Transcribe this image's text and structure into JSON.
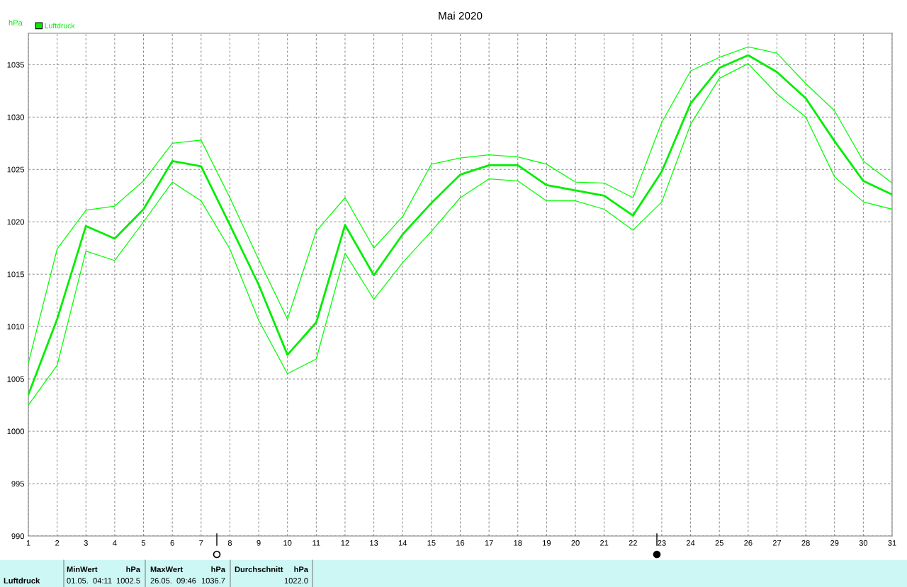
{
  "chart_data": {
    "type": "line",
    "title": "Mai 2020",
    "ylabel": "hPa",
    "x": [
      1,
      2,
      3,
      4,
      5,
      6,
      7,
      8,
      9,
      10,
      11,
      12,
      13,
      14,
      15,
      16,
      17,
      18,
      19,
      20,
      21,
      22,
      23,
      24,
      25,
      26,
      27,
      28,
      29,
      30,
      31
    ],
    "series": [
      {
        "name": "Luftdruck",
        "color": "#00ee00",
        "values": [
          1003.5,
          1010.7,
          1019.6,
          1018.4,
          1021.2,
          1025.8,
          1025.3,
          1019.7,
          1014.0,
          1007.3,
          1010.4,
          1019.7,
          1014.9,
          1018.8,
          1021.8,
          1024.5,
          1025.4,
          1025.4,
          1023.5,
          1023.0,
          1022.5,
          1020.6,
          1024.8,
          1031.3,
          1034.7,
          1035.9,
          1034.3,
          1031.8,
          1027.7,
          1023.9,
          1022.6
        ]
      },
      {
        "color": "#00ff00",
        "values": [
          1006.5,
          1017.4,
          1021.1,
          1021.5,
          1023.9,
          1027.5,
          1027.8,
          1022.3,
          1016.4,
          1010.7,
          1019.1,
          1022.3,
          1017.5,
          1020.5,
          1025.5,
          1026.1,
          1026.4,
          1026.2,
          1025.5,
          1023.8,
          1023.7,
          1022.3,
          1029.5,
          1034.4,
          1035.7,
          1036.7,
          1036.1,
          1033.2,
          1030.6,
          1025.8,
          1023.7
        ]
      },
      {
        "color": "#00ff00",
        "values": [
          1002.5,
          1006.3,
          1017.2,
          1016.3,
          1020.0,
          1023.8,
          1022.0,
          1017.4,
          1010.6,
          1005.5,
          1006.9,
          1017.0,
          1012.6,
          1016.1,
          1019.1,
          1022.3,
          1024.1,
          1023.9,
          1022.0,
          1022.0,
          1021.2,
          1019.2,
          1021.9,
          1029.3,
          1033.7,
          1035.1,
          1032.2,
          1030.0,
          1024.3,
          1021.9,
          1021.2
        ]
      }
    ],
    "xlim": [
      1,
      31
    ],
    "xticks": [
      1,
      2,
      3,
      4,
      5,
      6,
      7,
      8,
      9,
      10,
      11,
      12,
      13,
      14,
      15,
      16,
      17,
      18,
      19,
      20,
      21,
      22,
      23,
      24,
      25,
      26,
      27,
      28,
      29,
      30,
      31
    ],
    "ylim": [
      990,
      1038
    ],
    "yticks": [
      990,
      995,
      1000,
      1005,
      1010,
      1015,
      1020,
      1025,
      1030,
      1035
    ],
    "grid": true,
    "legend": "top left",
    "marker": "none",
    "line_style": "solid",
    "annotations": [
      "Luftdruck",
      "MinWert",
      "hPa",
      "01.05.  04:11",
      "1002.5",
      "MaxWert",
      "hPa",
      "26.05.  09:46",
      "1036.7",
      "Durchschnitt",
      "hPa",
      "1022.0"
    ]
  }
}
